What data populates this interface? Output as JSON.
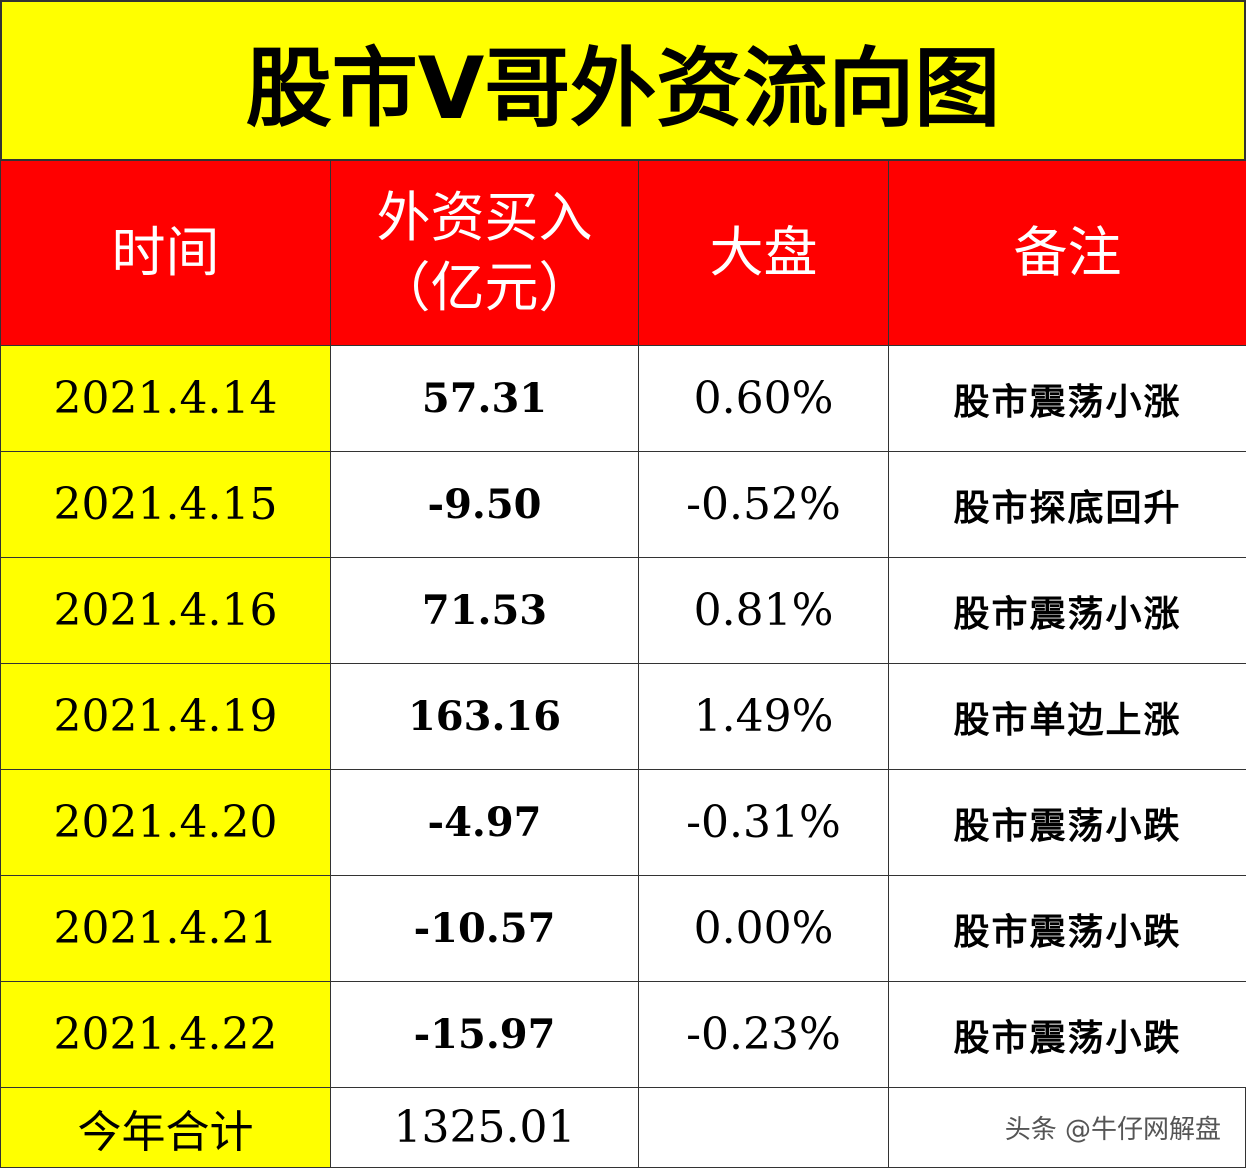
{
  "header": {
    "title": "股市V哥外资流向图"
  },
  "table": {
    "columns": [
      "时间",
      "外资买入\n（亿元）",
      "大盘",
      "备注"
    ],
    "rows": [
      [
        "2021.4.14",
        "57.31",
        "0.60%",
        "股市震荡小涨"
      ],
      [
        "2021.4.15",
        "-9.50",
        "-0.52%",
        "股市探底回升"
      ],
      [
        "2021.4.16",
        "71.53",
        "0.81%",
        "股市震荡小涨"
      ],
      [
        "2021.4.19",
        "163.16",
        "1.49%",
        "股市单边上涨"
      ],
      [
        "2021.4.20",
        "-4.97",
        "-0.31%",
        "股市震荡小跌"
      ],
      [
        "2021.4.21",
        "-10.57",
        "0.00%",
        "股市震荡小跌"
      ],
      [
        "2021.4.22",
        "-15.97",
        "-0.23%",
        "股市震荡小跌"
      ]
    ],
    "total": {
      "label": "今年合计",
      "value": "1325.01"
    }
  },
  "watermark": "头条 @牛仔网解盘"
}
